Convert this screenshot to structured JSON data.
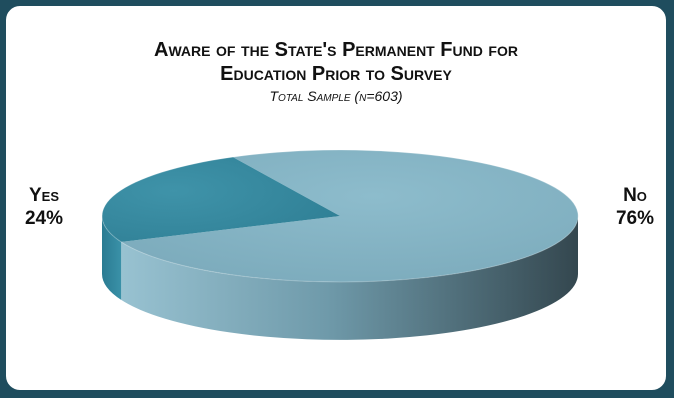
{
  "chart_data": {
    "type": "pie",
    "title_line1": "Aware of the State's Permanent Fund for",
    "title_line2": "Education Prior to Survey",
    "subtitle": "Total Sample (n=603)",
    "slices": [
      {
        "label": "Yes",
        "value": 24,
        "value_label": "24%"
      },
      {
        "label": "No",
        "value": 76,
        "value_label": "76%"
      }
    ],
    "style": "3d-perspective",
    "colors": {
      "yes_top": "#3a8aa0",
      "yes_side": "#2c7a90",
      "no_top": "#86b3c4",
      "no_side_light": "#8db8c8",
      "no_side_dark": "#3b4f57",
      "frame": "#1f4d5e"
    }
  }
}
